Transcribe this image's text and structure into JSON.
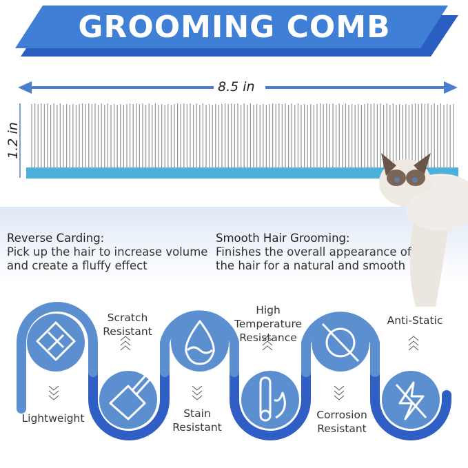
{
  "title": "GROOMING COMB",
  "dimensions": {
    "width": "8.5 in",
    "height": "1.2 in"
  },
  "features": [
    {
      "heading": "Reverse Carding:",
      "lines": [
        "Pick up the hair to increase volume",
        "and create a fluffy effect"
      ]
    },
    {
      "heading": "Smooth Hair Grooming:",
      "lines": [
        "Finishes the overall appearance of",
        "the hair for a natural and smooth"
      ]
    }
  ],
  "properties": [
    {
      "label": [
        "Lightweight"
      ],
      "icon": "lightweight-icon"
    },
    {
      "label": [
        "Scratch",
        "Resistant"
      ],
      "icon": "scratch-icon"
    },
    {
      "label": [
        "Stain",
        "Resistant"
      ],
      "icon": "water-drop-icon"
    },
    {
      "label": [
        "High",
        "Temperature",
        "Resistance"
      ],
      "icon": "thermometer-flame-icon"
    },
    {
      "label": [
        "Corrosion",
        "Resistant"
      ],
      "icon": "no-bacteria-icon"
    },
    {
      "label": [
        "Anti-Static"
      ],
      "icon": "no-lightning-icon"
    }
  ],
  "colors": {
    "banner": "#3f7fd6",
    "banner_shadow": "#2a5ec0",
    "comb_base": "#4db0dc",
    "wave_light": "#5b8fd0",
    "wave_dark": "#2f5fc4"
  }
}
